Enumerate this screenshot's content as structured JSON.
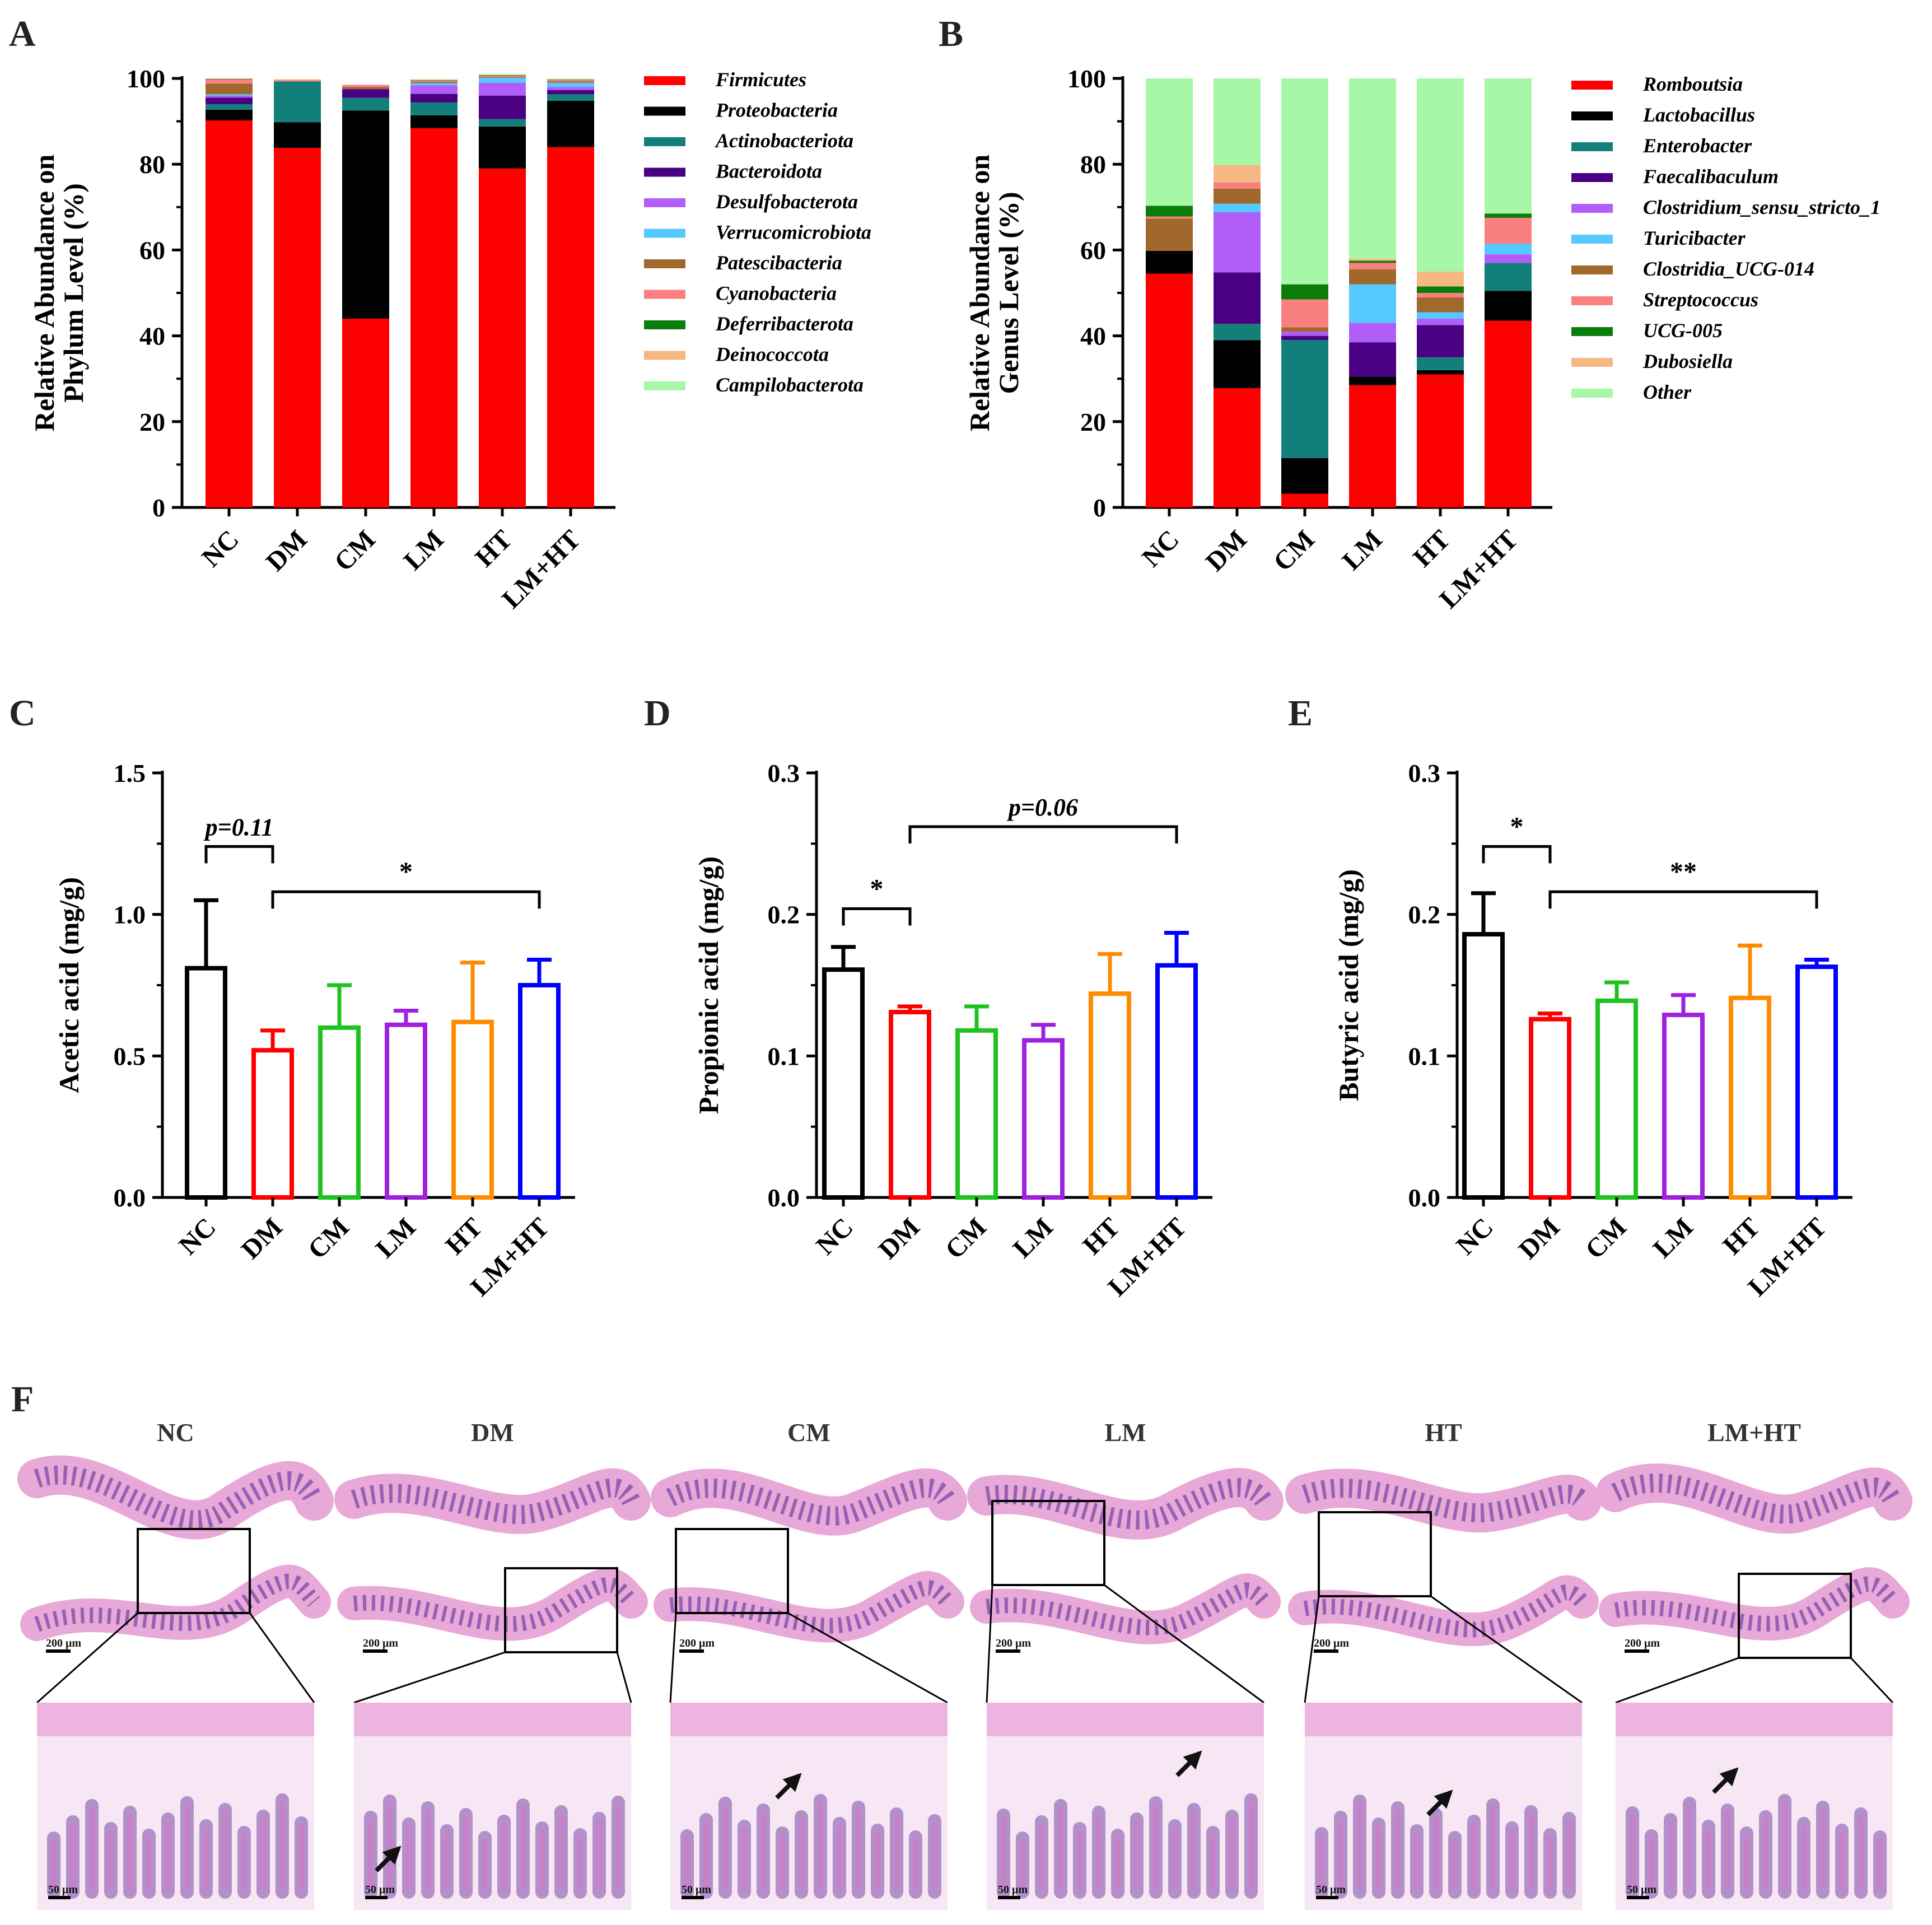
{
  "panels": {
    "A": "A",
    "B": "B",
    "C": "C",
    "D": "D",
    "E": "E",
    "F": "F"
  },
  "chart_data": [
    {
      "panel": "A",
      "type": "bar",
      "stacked": true,
      "ylabel": "Relative Abundance on Phylum Level (%)",
      "ylabel_lines": [
        "Relative Abundance on",
        "Phylum Level (%)"
      ],
      "ylim": [
        0,
        100
      ],
      "yticks": [
        "0",
        "20",
        "40",
        "60",
        "80",
        "100"
      ],
      "categories": [
        "NC",
        "DM",
        "CM",
        "LM",
        "HT",
        "LM+HT"
      ],
      "legend_position": "right",
      "series": [
        {
          "name": "Firmicutes",
          "color": "#ff0000",
          "values": [
            90.2,
            83.8,
            44.0,
            88.4,
            79.0,
            84.0
          ]
        },
        {
          "name": "Proteobacteria",
          "color": "#000000",
          "values": [
            2.5,
            6.0,
            48.5,
            3.0,
            9.8,
            10.8
          ]
        },
        {
          "name": "Actinobacteriota",
          "color": "#127f7a",
          "values": [
            1.3,
            9.5,
            3.0,
            3.0,
            1.7,
            1.5
          ]
        },
        {
          "name": "Bacteroidota",
          "color": "#4a0082",
          "values": [
            1.5,
            0.0,
            2.0,
            2.0,
            5.5,
            1.0
          ]
        },
        {
          "name": "Desulfobacterota",
          "color": "#b15ef8",
          "values": [
            0.5,
            0.0,
            0.0,
            2.0,
            3.0,
            0.7
          ]
        },
        {
          "name": "Verrucomicrobiota",
          "color": "#55c8ff",
          "values": [
            0.3,
            0.0,
            0.0,
            0.5,
            1.2,
            1.0
          ]
        },
        {
          "name": "Patescibacteria",
          "color": "#a0682a",
          "values": [
            2.5,
            0.0,
            0.5,
            0.3,
            0.2,
            0.3
          ]
        },
        {
          "name": "Cyanobacteria",
          "color": "#fa8080",
          "values": [
            1.0,
            0.3,
            0.5,
            0.3,
            0.3,
            0.3
          ]
        },
        {
          "name": "Deferribacterota",
          "color": "#0a7d0a",
          "values": [
            0.1,
            0.0,
            0.0,
            0.1,
            0.1,
            0.1
          ]
        },
        {
          "name": "Deinococcota",
          "color": "#f5b882",
          "values": [
            0.1,
            0.2,
            0.0,
            0.1,
            0.1,
            0.1
          ]
        },
        {
          "name": "Campilobacterota",
          "color": "#a6f7a6",
          "values": [
            0.0,
            0.0,
            0.0,
            0.1,
            0.1,
            0.1
          ]
        }
      ]
    },
    {
      "panel": "B",
      "type": "bar",
      "stacked": true,
      "ylabel": "Relative Abundance on Genus Level (%)",
      "ylabel_lines": [
        "Relative Abundance on",
        "Genus Level (%)"
      ],
      "ylim": [
        0,
        100
      ],
      "yticks": [
        "0",
        "20",
        "40",
        "60",
        "80",
        "100"
      ],
      "categories": [
        "NC",
        "DM",
        "CM",
        "LM",
        "HT",
        "LM+HT"
      ],
      "legend_position": "right",
      "series": [
        {
          "name": "Romboutsia",
          "color": "#ff0000",
          "values": [
            54.5,
            27.8,
            3.2,
            28.5,
            31.0,
            43.5
          ]
        },
        {
          "name": "Lactobacillus",
          "color": "#000000",
          "values": [
            5.3,
            11.2,
            8.3,
            2.0,
            1.0,
            7.0
          ]
        },
        {
          "name": "Enterobacter",
          "color": "#127f7a",
          "values": [
            0.0,
            3.8,
            27.5,
            0.0,
            3.0,
            6.5
          ]
        },
        {
          "name": "Faecalibaculum",
          "color": "#4a0082",
          "values": [
            0.0,
            12.0,
            1.0,
            8.0,
            7.5,
            0.0
          ]
        },
        {
          "name": "Clostridium_sensu_stricto_1",
          "color": "#b15ef8",
          "values": [
            0.0,
            14.0,
            1.0,
            4.5,
            1.5,
            2.0
          ]
        },
        {
          "name": "Turicibacter",
          "color": "#55c8ff",
          "values": [
            0.0,
            2.0,
            0.0,
            9.0,
            1.5,
            2.5
          ]
        },
        {
          "name": "Clostridia_UCG-014",
          "color": "#a0682a",
          "values": [
            7.5,
            3.5,
            1.0,
            3.5,
            3.5,
            0.0
          ]
        },
        {
          "name": "Streptococcus",
          "color": "#fa8080",
          "values": [
            0.5,
            1.5,
            6.5,
            1.5,
            1.0,
            6.0
          ]
        },
        {
          "name": "UCG-005",
          "color": "#0a7d0a",
          "values": [
            2.5,
            0.0,
            3.5,
            0.5,
            1.5,
            1.0
          ]
        },
        {
          "name": "Dubosiella",
          "color": "#f5b882",
          "values": [
            0.0,
            4.0,
            0.0,
            0.5,
            3.5,
            0.0
          ]
        },
        {
          "name": "Other",
          "color": "#a6f7a6",
          "values": [
            29.7,
            20.2,
            48.0,
            42.0,
            45.0,
            31.5
          ]
        }
      ]
    },
    {
      "panel": "C",
      "type": "bar",
      "ylabel": "Acetic acid (mg/g)",
      "ylim": [
        0,
        1.5
      ],
      "yticks": [
        "0.0",
        "0.5",
        "1.0",
        "1.5"
      ],
      "categories": [
        "NC",
        "DM",
        "CM",
        "LM",
        "HT",
        "LM+HT"
      ],
      "colors": [
        "#000000",
        "#ff0000",
        "#1fc21f",
        "#a020e0",
        "#ff8c00",
        "#0000ff"
      ],
      "values": [
        0.81,
        0.52,
        0.6,
        0.61,
        0.62,
        0.75
      ],
      "error": [
        0.24,
        0.07,
        0.15,
        0.05,
        0.21,
        0.09
      ],
      "annotations": [
        {
          "from": 0,
          "to": 1,
          "text": "p=0.11",
          "italic": true,
          "y": 1.24
        },
        {
          "from": 1,
          "to": 5,
          "text": "*",
          "italic": false,
          "y": 1.08
        }
      ]
    },
    {
      "panel": "D",
      "type": "bar",
      "ylabel": "Propionic acid (mg/g)",
      "ylim": [
        0,
        0.3
      ],
      "yticks": [
        "0.0",
        "0.1",
        "0.2",
        "0.3"
      ],
      "categories": [
        "NC",
        "DM",
        "CM",
        "LM",
        "HT",
        "LM+HT"
      ],
      "colors": [
        "#000000",
        "#ff0000",
        "#1fc21f",
        "#a020e0",
        "#ff8c00",
        "#0000ff"
      ],
      "values": [
        0.161,
        0.131,
        0.118,
        0.111,
        0.144,
        0.164
      ],
      "error": [
        0.016,
        0.004,
        0.017,
        0.011,
        0.028,
        0.023
      ],
      "annotations": [
        {
          "from": 0,
          "to": 1,
          "text": "*",
          "italic": false,
          "y": 0.204
        },
        {
          "from": 1,
          "to": 5,
          "text": "p=0.06",
          "italic": true,
          "y": 0.262
        }
      ]
    },
    {
      "panel": "E",
      "type": "bar",
      "ylabel": "Butyric acid (mg/g)",
      "ylim": [
        0,
        0.3
      ],
      "yticks": [
        "0.0",
        "0.1",
        "0.2",
        "0.3"
      ],
      "categories": [
        "NC",
        "DM",
        "CM",
        "LM",
        "HT",
        "LM+HT"
      ],
      "colors": [
        "#000000",
        "#ff0000",
        "#1fc21f",
        "#a020e0",
        "#ff8c00",
        "#0000ff"
      ],
      "values": [
        0.186,
        0.126,
        0.139,
        0.129,
        0.141,
        0.163
      ],
      "error": [
        0.029,
        0.004,
        0.013,
        0.014,
        0.037,
        0.005
      ],
      "annotations": [
        {
          "from": 0,
          "to": 1,
          "text": "*",
          "italic": false,
          "y": 0.248
        },
        {
          "from": 1,
          "to": 5,
          "text": "**",
          "italic": false,
          "y": 0.216
        }
      ]
    }
  ],
  "histology": {
    "groups": [
      "NC",
      "DM",
      "CM",
      "LM",
      "HT",
      "LM+HT"
    ],
    "scale_top": "200 μm",
    "scale_bottom": "50 μm",
    "colors": {
      "tissue": "#c880c8",
      "crypt": "#7a4aa8",
      "background": "#ffffff",
      "lumen": "#f7e6f4",
      "muscle": "#e8a8d8"
    }
  }
}
